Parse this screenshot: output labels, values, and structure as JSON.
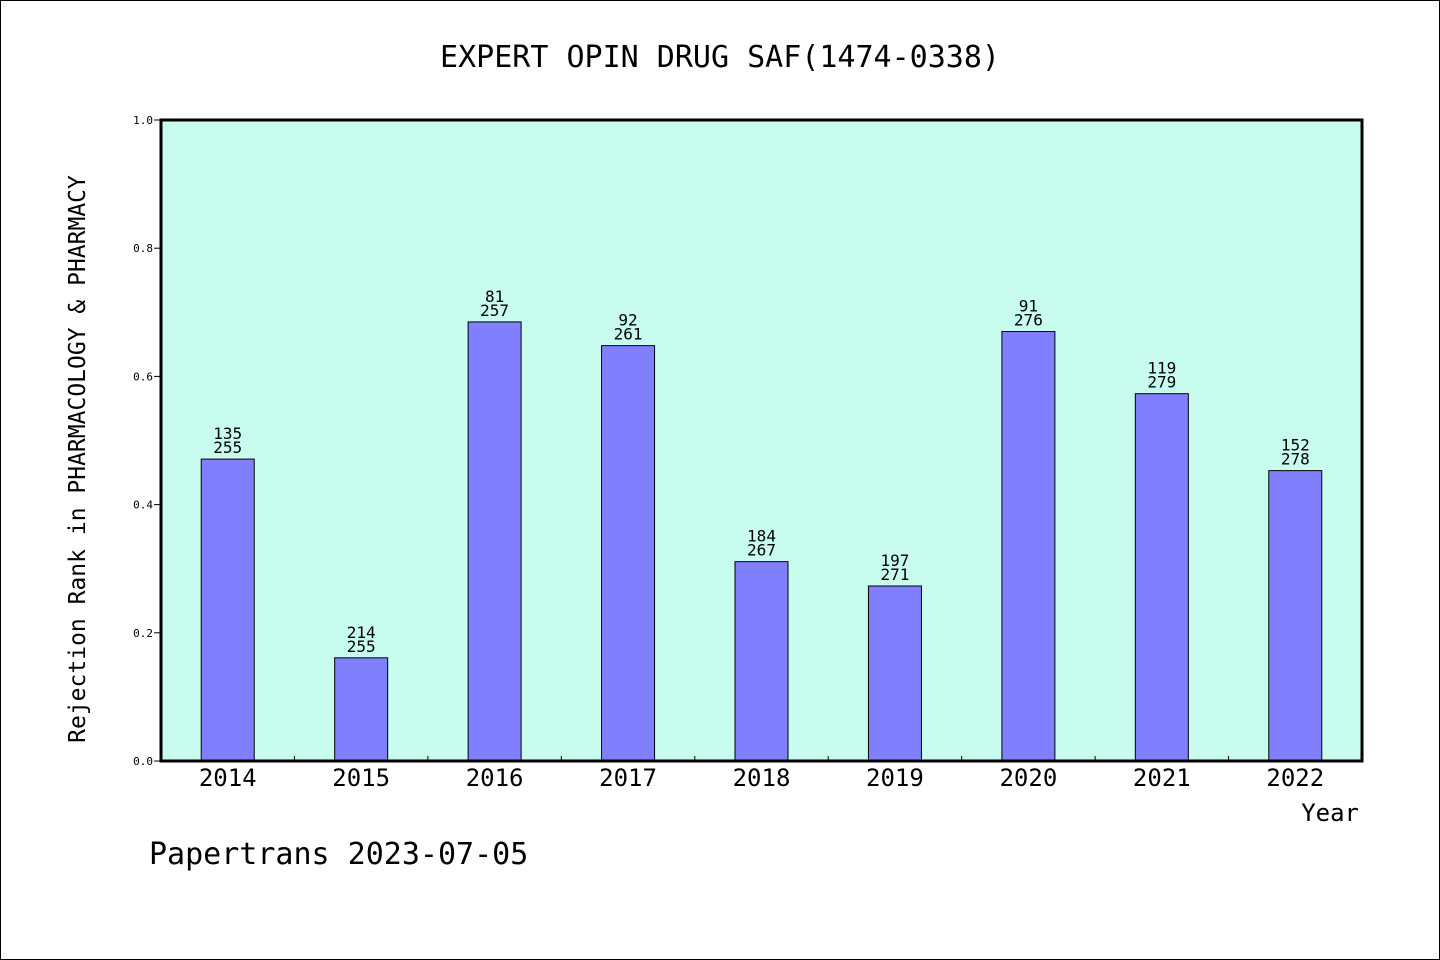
{
  "chart_data": {
    "type": "bar",
    "title": "EXPERT OPIN DRUG SAF(1474-0338)",
    "xlabel": "Year",
    "ylabel": "Rejection Rank in PHARMACOLOGY & PHARMACY",
    "ylim": [
      0,
      1
    ],
    "yticks": [
      "0.0",
      "0.2",
      "0.4",
      "0.6",
      "0.8",
      "1.0"
    ],
    "categories": [
      "2014",
      "2015",
      "2016",
      "2017",
      "2018",
      "2019",
      "2020",
      "2021",
      "2022"
    ],
    "values": [
      0.471,
      0.161,
      0.685,
      0.648,
      0.311,
      0.273,
      0.67,
      0.573,
      0.453
    ],
    "label_top": [
      "135",
      "214",
      "81",
      "92",
      "184",
      "197",
      "91",
      "119",
      "152"
    ],
    "label_bottom": [
      "255",
      "255",
      "257",
      "261",
      "267",
      "271",
      "276",
      "279",
      "278"
    ],
    "colors": {
      "plot_bg": "#c8fcee",
      "bar": "#8080ff",
      "bar_stroke": "#000000"
    }
  },
  "footer": "Papertrans 2023-07-05"
}
